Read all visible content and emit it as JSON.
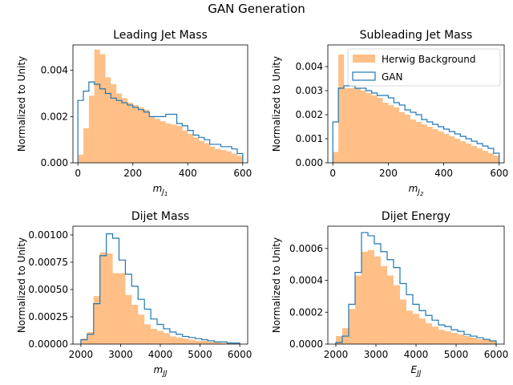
{
  "figure": {
    "suptitle": "GAN Generation",
    "colors": {
      "background": "#ff7f0e",
      "gan": "#1f77b4"
    },
    "legend": {
      "panel_index": 1,
      "placement": "upper right"
    }
  },
  "chart_data": [
    {
      "type": "histogram",
      "title": "Leading Jet Mass",
      "xlabel": "m_{J_1}",
      "ylabel": "Normalized to Unity",
      "xlim": [
        -18,
        618
      ],
      "ylim": [
        0,
        0.0051
      ],
      "xticks": [
        0,
        200,
        400,
        600
      ],
      "xtick_labels": [
        "0",
        "200",
        "400",
        "600"
      ],
      "yticks": [
        0,
        0.002,
        0.004
      ],
      "ytick_labels": [
        "0.000",
        "0.002",
        "0.004"
      ],
      "bin_edges": [
        0,
        20,
        40,
        60,
        80,
        100,
        120,
        140,
        160,
        180,
        200,
        220,
        240,
        260,
        280,
        300,
        320,
        340,
        360,
        380,
        400,
        420,
        440,
        460,
        480,
        500,
        520,
        540,
        560,
        580,
        600
      ],
      "series": [
        {
          "name": "Herwig Background",
          "style": "filled",
          "values": [
            0.00035,
            0.0015,
            0.0029,
            0.0049,
            0.0047,
            0.0037,
            0.0034,
            0.003,
            0.0028,
            0.0026,
            0.0025,
            0.0024,
            0.0023,
            0.002,
            0.0019,
            0.0018,
            0.0017,
            0.00165,
            0.0016,
            0.0014,
            0.00125,
            0.0011,
            0.00095,
            0.00085,
            0.0007,
            0.0006,
            0.00055,
            0.0005,
            0.0004,
            0.0003
          ]
        },
        {
          "name": "GAN",
          "style": "step",
          "values": [
            0.0027,
            0.0031,
            0.0035,
            0.0034,
            0.0032,
            0.003,
            0.0028,
            0.0027,
            0.0026,
            0.0025,
            0.0024,
            0.0023,
            0.0022,
            0.002,
            0.002,
            0.002,
            0.0021,
            0.0021,
            0.0017,
            0.0016,
            0.0014,
            0.0012,
            0.0011,
            0.001,
            0.0008,
            0.0008,
            0.0007,
            0.0007,
            0.0006,
            0.0004
          ]
        }
      ]
    },
    {
      "type": "histogram",
      "title": "Subleading Jet Mass",
      "xlabel": "m_{J_2}",
      "ylabel": "Normalized to Unity",
      "xlim": [
        -18,
        618
      ],
      "ylim": [
        0,
        0.0049
      ],
      "xticks": [
        0,
        200,
        400,
        600
      ],
      "xtick_labels": [
        "0",
        "200",
        "400",
        "600"
      ],
      "yticks": [
        0,
        0.001,
        0.002,
        0.003,
        0.004
      ],
      "ytick_labels": [
        "0.000",
        "0.001",
        "0.002",
        "0.003",
        "0.004"
      ],
      "bin_edges": [
        0,
        20,
        40,
        60,
        80,
        100,
        120,
        140,
        160,
        180,
        200,
        220,
        240,
        260,
        280,
        300,
        320,
        340,
        360,
        380,
        400,
        420,
        440,
        460,
        480,
        500,
        520,
        540,
        560,
        580,
        600
      ],
      "series": [
        {
          "name": "Herwig Background",
          "style": "filled",
          "values": [
            0.00045,
            0.0045,
            0.0031,
            0.0031,
            0.0031,
            0.003,
            0.0029,
            0.0028,
            0.0027,
            0.0025,
            0.0024,
            0.0023,
            0.0021,
            0.002,
            0.0018,
            0.0017,
            0.0016,
            0.0015,
            0.0014,
            0.0013,
            0.0012,
            0.0011,
            0.001,
            0.0009,
            0.0008,
            0.0007,
            0.0006,
            0.0005,
            0.0004,
            0.0003
          ]
        },
        {
          "name": "GAN",
          "style": "step",
          "values": [
            0.0017,
            0.0031,
            0.0032,
            0.0032,
            0.0031,
            0.0031,
            0.003,
            0.0029,
            0.0028,
            0.0028,
            0.0027,
            0.0025,
            0.0024,
            0.0022,
            0.0021,
            0.002,
            0.0018,
            0.0017,
            0.0016,
            0.0015,
            0.0014,
            0.0013,
            0.0012,
            0.0011,
            0.001,
            0.0009,
            0.0008,
            0.0007,
            0.0006,
            0.0004
          ]
        }
      ]
    },
    {
      "type": "histogram",
      "title": "Dijet Mass",
      "xlabel": "m_{JJ}",
      "ylabel": "Normalized to Unity",
      "xlim": [
        1800,
        6200
      ],
      "ylim": [
        0,
        0.00108
      ],
      "xticks": [
        2000,
        3000,
        4000,
        5000,
        6000
      ],
      "xtick_labels": [
        "2000",
        "3000",
        "4000",
        "5000",
        "6000"
      ],
      "yticks": [
        0,
        0.00025,
        0.0005,
        0.00075,
        0.001
      ],
      "ytick_labels": [
        "0.00000",
        "0.00025",
        "0.00050",
        "0.00075",
        "0.00100"
      ],
      "bin_edges": [
        2000,
        2160,
        2320,
        2480,
        2640,
        2800,
        2960,
        3120,
        3280,
        3440,
        3600,
        3760,
        3920,
        4080,
        4240,
        4400,
        4560,
        4720,
        4880,
        5040,
        5200,
        5360,
        5520,
        5680,
        5840,
        6000
      ],
      "series": [
        {
          "name": "Herwig Background",
          "style": "filled",
          "values": [
            5e-05,
            0.00011,
            0.00044,
            0.00084,
            0.00083,
            0.00065,
            0.00065,
            0.00045,
            0.00036,
            0.00027,
            0.00018,
            0.00014,
            0.00012,
            0.0001,
            7e-05,
            6e-05,
            5e-05,
            4e-05,
            3e-05,
            3e-05,
            2e-05,
            2e-05,
            1e-05,
            1e-05,
            1e-05
          ]
        },
        {
          "name": "GAN",
          "style": "step",
          "values": [
            4e-05,
            9e-05,
            0.00037,
            0.00081,
            0.00101,
            0.00097,
            0.00077,
            0.00064,
            0.00053,
            0.00041,
            0.00032,
            0.00023,
            0.00018,
            0.00014,
            0.00011,
            9e-05,
            7e-05,
            6e-05,
            5e-05,
            4e-05,
            3e-05,
            2e-05,
            2e-05,
            1e-05,
            1e-05
          ]
        }
      ]
    },
    {
      "type": "histogram",
      "title": "Dijet Energy",
      "xlabel": "E_{JJ}",
      "ylabel": "Normalized to Unity",
      "xlim": [
        1800,
        6200
      ],
      "ylim": [
        0,
        0.00074
      ],
      "xticks": [
        2000,
        3000,
        4000,
        5000,
        6000
      ],
      "xtick_labels": [
        "2000",
        "3000",
        "4000",
        "5000",
        "6000"
      ],
      "yticks": [
        0,
        0.0002,
        0.0004,
        0.0006
      ],
      "ytick_labels": [
        "0.0000",
        "0.0002",
        "0.0004",
        "0.0006"
      ],
      "bin_edges": [
        2000,
        2160,
        2320,
        2480,
        2640,
        2800,
        2960,
        3120,
        3280,
        3440,
        3600,
        3760,
        3920,
        4080,
        4240,
        4400,
        4560,
        4720,
        4880,
        5040,
        5200,
        5360,
        5520,
        5680,
        5840,
        6000
      ],
      "series": [
        {
          "name": "Herwig Background",
          "style": "filled",
          "values": [
            5e-05,
            0.0001,
            0.00022,
            0.00043,
            0.00058,
            0.00059,
            0.00055,
            0.00049,
            0.00043,
            0.00037,
            0.00028,
            0.00021,
            0.00019,
            0.00016,
            0.00013,
            0.00011,
            9e-05,
            8e-05,
            7e-05,
            6e-05,
            5e-05,
            4e-05,
            3e-05,
            3e-05,
            2e-05
          ]
        },
        {
          "name": "GAN",
          "style": "step",
          "values": [
            1e-05,
            5e-05,
            0.00025,
            0.00045,
            0.0007,
            0.00068,
            0.00063,
            0.00058,
            0.00053,
            0.00048,
            0.00038,
            0.00031,
            0.00025,
            0.00021,
            0.00018,
            0.00015,
            0.00012,
            0.00011,
            9e-05,
            8e-05,
            6e-05,
            5e-05,
            4e-05,
            3e-05,
            2e-05
          ]
        }
      ]
    }
  ]
}
